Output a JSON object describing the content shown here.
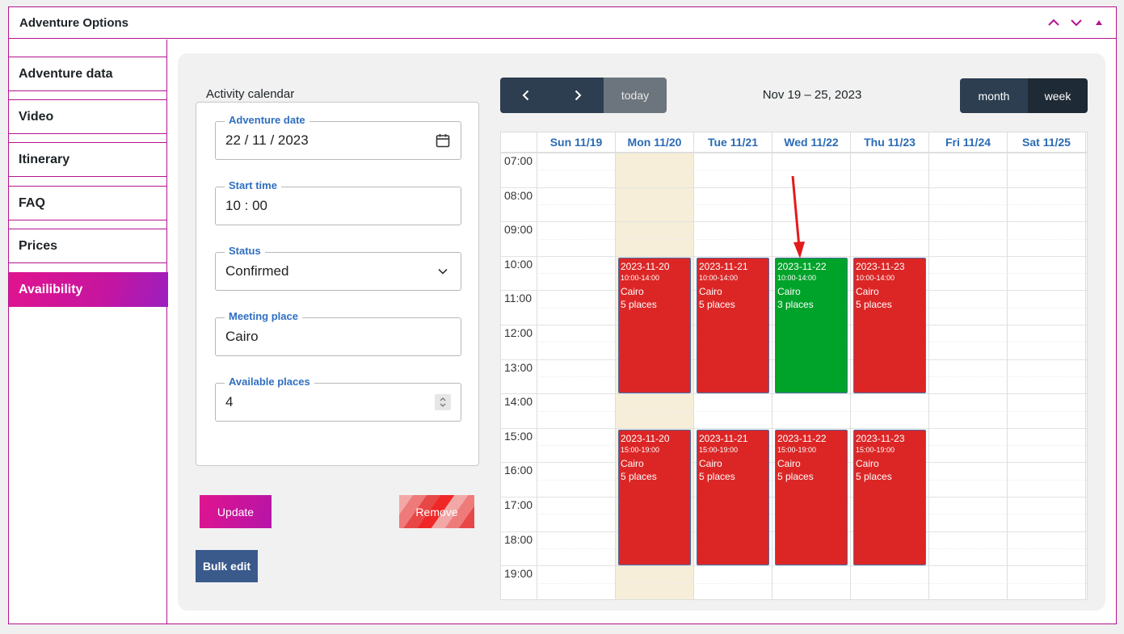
{
  "panel": {
    "title": "Adventure Options"
  },
  "tabs": [
    {
      "label": "Adventure data",
      "name": "tab-adventure-data",
      "active": false
    },
    {
      "label": "Video",
      "name": "tab-video",
      "active": false
    },
    {
      "label": "Itinerary",
      "name": "tab-itinerary",
      "active": false
    },
    {
      "label": "FAQ",
      "name": "tab-faq",
      "active": false
    },
    {
      "label": "Prices",
      "name": "tab-prices",
      "active": false
    },
    {
      "label": "Availibility",
      "name": "tab-availibility",
      "active": true
    }
  ],
  "form": {
    "heading": "Activity calendar",
    "date": {
      "label": "Adventure date",
      "value": "22 / 11 / 2023"
    },
    "start_time": {
      "label": "Start time",
      "value": "10 : 00"
    },
    "status": {
      "label": "Status",
      "value": "Confirmed"
    },
    "meeting_place": {
      "label": "Meeting place",
      "value": "Cairo"
    },
    "available_places": {
      "label": "Available places",
      "value": "4"
    },
    "update_label": "Update",
    "remove_label": "Remove",
    "bulk_label": "Bulk edit"
  },
  "calendar": {
    "today_label": "today",
    "range_title": "Nov 19 – 25, 2023",
    "month_label": "month",
    "week_label": "week",
    "days": [
      "Sun 11/19",
      "Mon 11/20",
      "Tue 11/21",
      "Wed 11/22",
      "Thu 11/23",
      "Fri 11/24",
      "Sat 11/25"
    ],
    "today_index": 1,
    "hours": [
      "07:00",
      "08:00",
      "09:00",
      "10:00",
      "11:00",
      "12:00",
      "13:00",
      "14:00",
      "15:00",
      "16:00",
      "17:00",
      "18:00",
      "19:00"
    ],
    "events": [
      {
        "day": 1,
        "start": 10,
        "end": 14,
        "date": "2023-11-20",
        "time": "10:00-14:00",
        "place": "Cairo",
        "places": "5 places",
        "color": "#dc2626"
      },
      {
        "day": 2,
        "start": 10,
        "end": 14,
        "date": "2023-11-21",
        "time": "10:00-14:00",
        "place": "Cairo",
        "places": "5 places",
        "color": "#dc2626"
      },
      {
        "day": 3,
        "start": 10,
        "end": 14,
        "date": "2023-11-22",
        "time": "10:00-14:00",
        "place": "Cairo",
        "places": "3 places",
        "color": "#00a32a"
      },
      {
        "day": 4,
        "start": 10,
        "end": 14,
        "date": "2023-11-23",
        "time": "10:00-14:00",
        "place": "Cairo",
        "places": "5 places",
        "color": "#dc2626"
      },
      {
        "day": 1,
        "start": 15,
        "end": 19,
        "date": "2023-11-20",
        "time": "15:00-19:00",
        "place": "Cairo",
        "places": "5 places",
        "color": "#dc2626"
      },
      {
        "day": 2,
        "start": 15,
        "end": 19,
        "date": "2023-11-21",
        "time": "15:00-19:00",
        "place": "Cairo",
        "places": "5 places",
        "color": "#dc2626"
      },
      {
        "day": 3,
        "start": 15,
        "end": 19,
        "date": "2023-11-22",
        "time": "15:00-19:00",
        "place": "Cairo",
        "places": "5 places",
        "color": "#dc2626"
      },
      {
        "day": 4,
        "start": 15,
        "end": 19,
        "date": "2023-11-23",
        "time": "15:00-19:00",
        "place": "Cairo",
        "places": "5 places",
        "color": "#dc2626"
      }
    ]
  },
  "icons": {
    "collapse_up": "chevron-up-icon",
    "collapse_down": "chevron-down-icon",
    "toggle": "triangle-up-icon",
    "date_picker": "calendar-icon",
    "select": "chevron-down-icon",
    "spinner": "spinner-icon",
    "prev": "chevron-left-icon",
    "next": "chevron-right-icon",
    "annotation": "red-arrow-icon"
  },
  "colors": {
    "accent": "#b5138f",
    "label_blue": "#2f6fc0",
    "event_red": "#dc2626",
    "event_green": "#00a32a",
    "nav_dark": "#2c3e50"
  }
}
